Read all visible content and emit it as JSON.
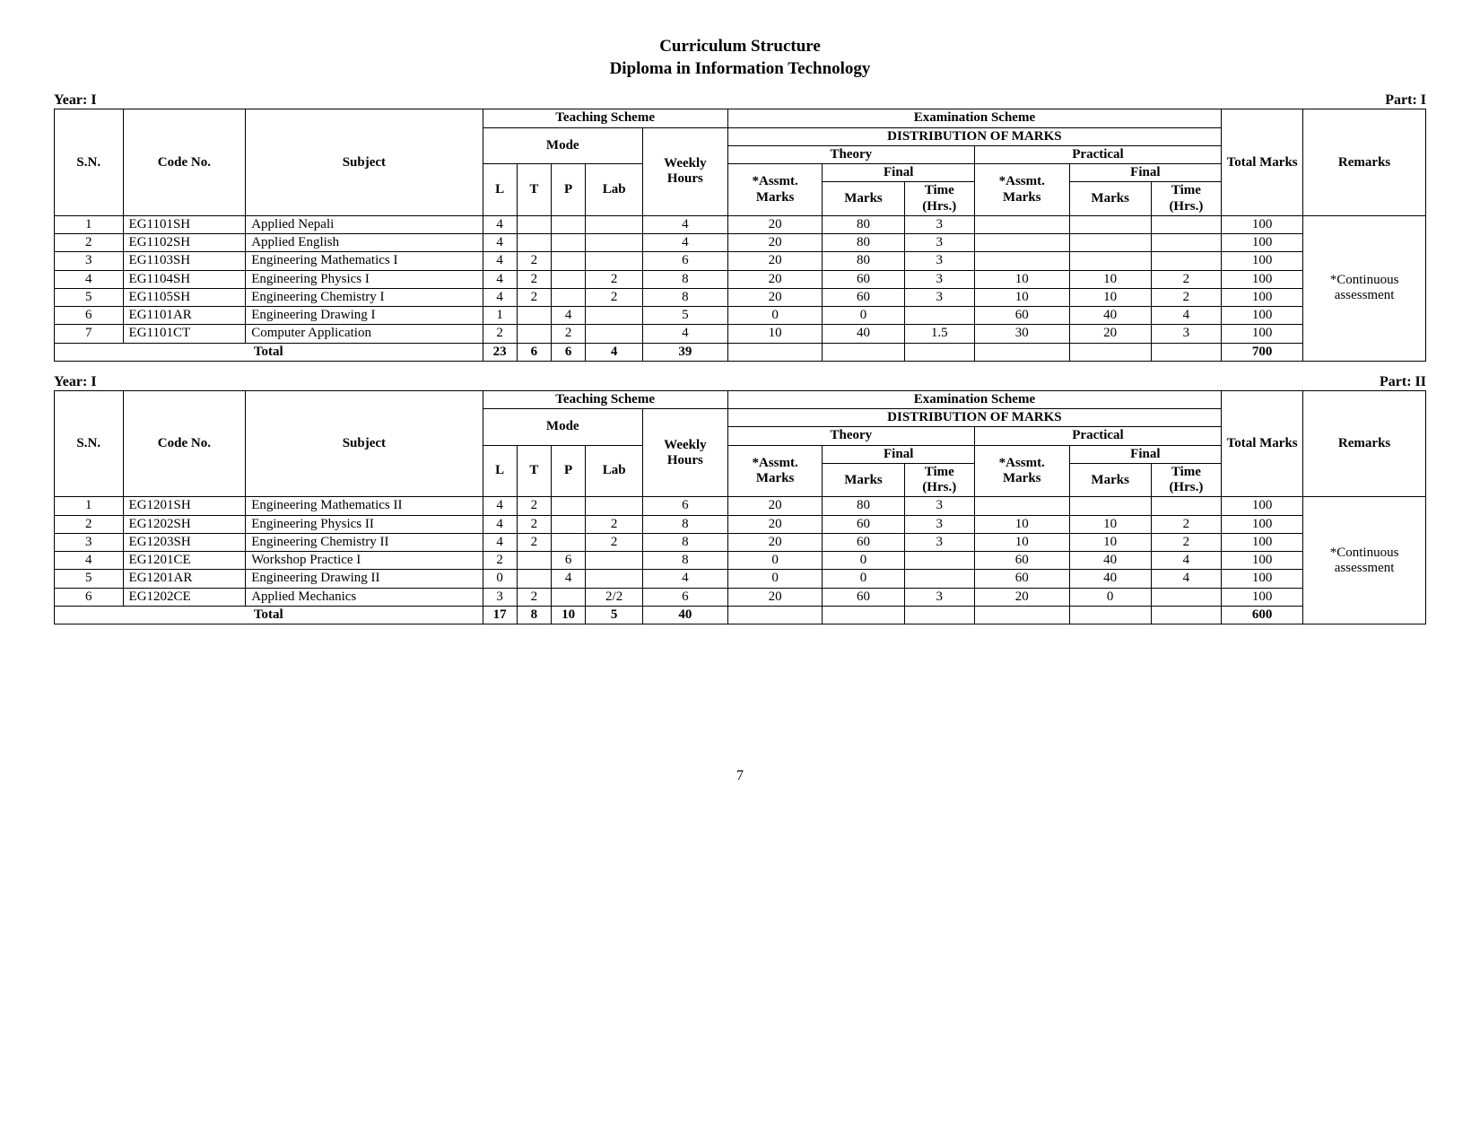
{
  "title1": "Curriculum Structure",
  "title2": "Diploma in Information Technology",
  "pageNumber": "7",
  "headers": {
    "sn": "S.N.",
    "code": "Code No.",
    "subject": "Subject",
    "teaching": "Teaching Scheme",
    "mode": "Mode",
    "L": "L",
    "T": "T",
    "P": "P",
    "Lab": "Lab",
    "weekly": "Weekly Hours",
    "exam": "Examination Scheme",
    "dist": "DISTRIBUTION OF MARKS",
    "theory": "Theory",
    "practical": "Practical",
    "assmt": "*Assmt. Marks",
    "final": "Final",
    "marks": "Marks",
    "time": "Time (Hrs.)",
    "total": "Total Marks",
    "remarks": "Remarks",
    "totalRow": "Total",
    "year": "Year:  I",
    "part1": "Part:  I",
    "part2": "Part:  II"
  },
  "remarksNote": "*Continuous assessment",
  "tables": [
    {
      "part": "Part:  I",
      "rows": [
        {
          "sn": "1",
          "code": "EG1101SH",
          "subject": "Applied Nepali",
          "L": "4",
          "T": "",
          "P": "",
          "Lab": "",
          "wh": "4",
          "tam": "20",
          "tfm": "80",
          "tft": "3",
          "pam": "",
          "pfm": "",
          "pft": "",
          "tot": "100"
        },
        {
          "sn": "2",
          "code": "EG1102SH",
          "subject": "Applied English",
          "L": "4",
          "T": "",
          "P": "",
          "Lab": "",
          "wh": "4",
          "tam": "20",
          "tfm": "80",
          "tft": "3",
          "pam": "",
          "pfm": "",
          "pft": "",
          "tot": "100"
        },
        {
          "sn": "3",
          "code": "EG1103SH",
          "subject": "Engineering Mathematics I",
          "L": "4",
          "T": "2",
          "P": "",
          "Lab": "",
          "wh": "6",
          "tam": "20",
          "tfm": "80",
          "tft": "3",
          "pam": "",
          "pfm": "",
          "pft": "",
          "tot": "100"
        },
        {
          "sn": "4",
          "code": "EG1104SH",
          "subject": "Engineering Physics I",
          "L": "4",
          "T": "2",
          "P": "",
          "Lab": "2",
          "wh": "8",
          "tam": "20",
          "tfm": "60",
          "tft": "3",
          "pam": "10",
          "pfm": "10",
          "pft": "2",
          "tot": "100"
        },
        {
          "sn": "5",
          "code": "EG1105SH",
          "subject": "Engineering Chemistry I",
          "L": "4",
          "T": "2",
          "P": "",
          "Lab": "2",
          "wh": "8",
          "tam": "20",
          "tfm": "60",
          "tft": "3",
          "pam": "10",
          "pfm": "10",
          "pft": "2",
          "tot": "100"
        },
        {
          "sn": "6",
          "code": "EG1101AR",
          "subject": "Engineering Drawing I",
          "L": "1",
          "T": "",
          "P": "4",
          "Lab": "",
          "wh": "5",
          "tam": "0",
          "tfm": "0",
          "tft": "",
          "pam": "60",
          "pfm": "40",
          "pft": "4",
          "tot": "100"
        },
        {
          "sn": "7",
          "code": "EG1101CT",
          "subject": "Computer Application",
          "L": "2",
          "T": "",
          "P": "2",
          "Lab": "",
          "wh": "4",
          "tam": "10",
          "tfm": "40",
          "tft": "1.5",
          "pam": "30",
          "pfm": "20",
          "pft": "3",
          "tot": "100"
        }
      ],
      "total": {
        "L": "23",
        "T": "6",
        "P": "6",
        "Lab": "4",
        "wh": "39",
        "tam": "",
        "tfm": "",
        "tft": "",
        "pam": "",
        "pfm": "",
        "pft": "",
        "tot": "700"
      }
    },
    {
      "part": "Part:  II",
      "rows": [
        {
          "sn": "1",
          "code": "EG1201SH",
          "subject": "Engineering Mathematics II",
          "L": "4",
          "T": "2",
          "P": "",
          "Lab": "",
          "wh": "6",
          "tam": "20",
          "tfm": "80",
          "tft": "3",
          "pam": "",
          "pfm": "",
          "pft": "",
          "tot": "100"
        },
        {
          "sn": "2",
          "code": "EG1202SH",
          "subject": "Engineering Physics II",
          "L": "4",
          "T": "2",
          "P": "",
          "Lab": "2",
          "wh": "8",
          "tam": "20",
          "tfm": "60",
          "tft": "3",
          "pam": "10",
          "pfm": "10",
          "pft": "2",
          "tot": "100"
        },
        {
          "sn": "3",
          "code": "EG1203SH",
          "subject": "Engineering Chemistry II",
          "L": "4",
          "T": "2",
          "P": "",
          "Lab": "2",
          "wh": "8",
          "tam": "20",
          "tfm": "60",
          "tft": "3",
          "pam": "10",
          "pfm": "10",
          "pft": "2",
          "tot": "100"
        },
        {
          "sn": "4",
          "code": "EG1201CE",
          "subject": "Workshop Practice I",
          "L": "2",
          "T": "",
          "P": "6",
          "Lab": "",
          "wh": "8",
          "tam": "0",
          "tfm": "0",
          "tft": "",
          "pam": "60",
          "pfm": "40",
          "pft": "4",
          "tot": "100"
        },
        {
          "sn": "5",
          "code": "EG1201AR",
          "subject": "Engineering Drawing II",
          "L": "0",
          "T": "",
          "P": "4",
          "Lab": "",
          "wh": "4",
          "tam": "0",
          "tfm": "0",
          "tft": "",
          "pam": "60",
          "pfm": "40",
          "pft": "4",
          "tot": "100"
        },
        {
          "sn": "6",
          "code": "EG1202CE",
          "subject": "Applied Mechanics",
          "L": "3",
          "T": "2",
          "P": "",
          "Lab": "2/2",
          "wh": "6",
          "tam": "20",
          "tfm": "60",
          "tft": "3",
          "pam": "20",
          "pfm": "0",
          "pft": "",
          "tot": "100"
        }
      ],
      "total": {
        "L": "17",
        "T": "8",
        "P": "10",
        "Lab": "5",
        "wh": "40",
        "tam": "",
        "tfm": "",
        "tft": "",
        "pam": "",
        "pfm": "",
        "pft": "",
        "tot": "600"
      }
    }
  ]
}
